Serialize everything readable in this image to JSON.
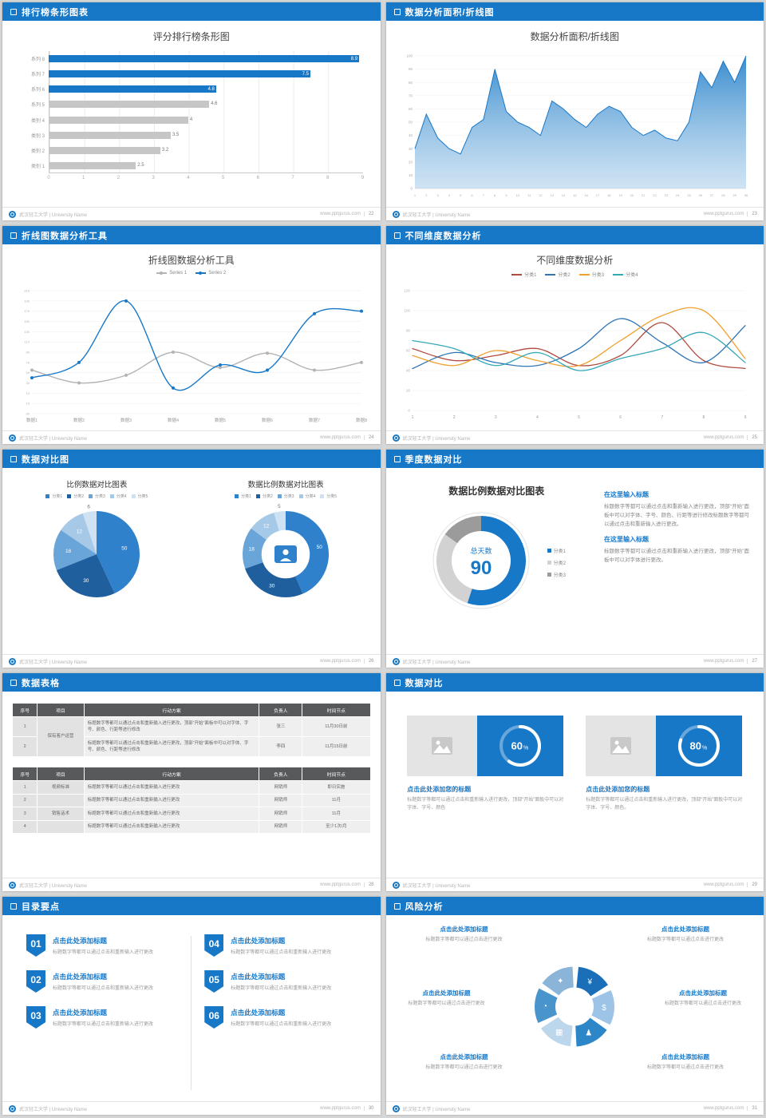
{
  "theme": {
    "accent": "#1878c8",
    "page_bg": "#d6d6d6"
  },
  "footer": {
    "org": "武汉轻工大学 | University Name",
    "url": "www.pptgurus.com"
  },
  "slides": [
    {
      "header": "排行榜条形图表",
      "page": "22",
      "title": "评分排行榜条形图",
      "chart_data": {
        "type": "bar",
        "orientation": "horizontal",
        "categories": [
          "系列 8",
          "系列 7",
          "系列 6",
          "系列 5",
          "类别 4",
          "类别 3",
          "类别 2",
          "类别 1"
        ],
        "values": [
          8.9,
          7.5,
          4.8,
          4.6,
          4,
          3.5,
          3.2,
          2.5
        ],
        "highlight_count": 3,
        "bar_color": "#1878c8",
        "muted_color": "#c6c6c6",
        "xticks": [
          0,
          1,
          2,
          3,
          4,
          5,
          6,
          7,
          8,
          9
        ],
        "xmax": 9
      }
    },
    {
      "header": "数据分析面积/折线图",
      "page": "23",
      "title": "数据分析面积/折线图",
      "chart_data": {
        "type": "area",
        "x": [
          1,
          2,
          3,
          4,
          5,
          6,
          7,
          8,
          9,
          10,
          11,
          12,
          13,
          14,
          15,
          16,
          17,
          18,
          19,
          20,
          21,
          22,
          23,
          24,
          25,
          26,
          27,
          28,
          29,
          30
        ],
        "values": [
          30,
          56,
          38,
          30,
          26,
          46,
          52,
          90,
          58,
          50,
          46,
          40,
          66,
          60,
          52,
          46,
          56,
          62,
          58,
          46,
          40,
          44,
          38,
          36,
          50,
          88,
          76,
          96,
          80,
          100
        ],
        "ylim": [
          0,
          100
        ],
        "ystep": 10,
        "line_color": "#1878c8"
      }
    },
    {
      "header": "折线图数据分析工具",
      "page": "24",
      "title": "折线图数据分析工具",
      "chart_data": {
        "type": "line",
        "categories": [
          "数据1",
          "数据2",
          "数据3",
          "数据4",
          "数据5",
          "数据6",
          "数据7",
          "数据8"
        ],
        "series": [
          {
            "name": "Series 1",
            "color": "#b3b3b3",
            "values": [
              55,
              30,
              45,
              90,
              60,
              88,
              55,
              70
            ]
          },
          {
            "name": "Series 2",
            "color": "#1878c8",
            "values": [
              40,
              70,
              190,
              20,
              65,
              55,
              165,
              170
            ]
          }
        ],
        "ylim": [
          -30,
          210
        ],
        "ystep": 20
      }
    },
    {
      "header": "不同维度数据分析",
      "page": "25",
      "title": "不同维度数据分析",
      "chart_data": {
        "type": "line",
        "categories": [
          "1",
          "2",
          "3",
          "4",
          "5",
          "6",
          "7",
          "8",
          "9"
        ],
        "series": [
          {
            "name": "分类1",
            "color": "#b04a3e",
            "values": [
              62,
              50,
              55,
              62,
              45,
              55,
              88,
              50,
              42
            ]
          },
          {
            "name": "分类2",
            "color": "#2e75b6",
            "values": [
              42,
              58,
              48,
              45,
              62,
              92,
              68,
              48,
              85
            ]
          },
          {
            "name": "分类3",
            "color": "#f0a030",
            "values": [
              55,
              45,
              60,
              50,
              45,
              70,
              95,
              100,
              52
            ]
          },
          {
            "name": "分类4",
            "color": "#35a8b8",
            "values": [
              70,
              62,
              45,
              58,
              40,
              52,
              62,
              78,
              48
            ]
          }
        ],
        "ylim": [
          0,
          120
        ],
        "ystep": 20
      }
    },
    {
      "header": "数据对比图",
      "page": "26",
      "charts": [
        {
          "title": "比例数据对比图表",
          "type": "pie",
          "labels": [
            "分类1",
            "分类2",
            "分类3",
            "分类4",
            "分类5"
          ],
          "values": [
            50,
            30,
            18,
            12,
            6
          ],
          "colors": [
            "#2f81cc",
            "#205f9e",
            "#69a5d9",
            "#a6c9e8",
            "#cfe2f3"
          ]
        },
        {
          "title": "数据比例数据对比图表",
          "type": "donut",
          "labels": [
            "分类1",
            "分类2",
            "分类3",
            "分类4",
            "分类5"
          ],
          "values": [
            50,
            30,
            18,
            12,
            5
          ],
          "colors": [
            "#2f81cc",
            "#205f9e",
            "#69a5d9",
            "#a6c9e8",
            "#cfe2f3"
          ]
        }
      ]
    },
    {
      "header": "季度数据对比",
      "page": "27",
      "title": "数据比例数据对比图表",
      "chart_data": {
        "type": "donut",
        "labels": [
          "分类1",
          "分类2",
          "分类3"
        ],
        "values": [
          55,
          30,
          15
        ],
        "colors": [
          "#1878c8",
          "#d2d2d2",
          "#9b9b9b"
        ],
        "center_label": "总天数",
        "center_value": "90"
      },
      "blocks": [
        {
          "heading": "在这里输入标题",
          "body": "标题数字等都可以通过点击和重新输入进行更改，顶部“开始”面板中可以对字体、字号、颜色、行距等进行修改标题数字等都可以通过点击和重新输入进行更改。"
        },
        {
          "heading": "在这里输入标题",
          "body": "标题数字等都可以通过点击和重新输入进行更改，顶部“开始”面板中可以对字体进行更改。"
        }
      ]
    },
    {
      "header": "数据表格",
      "page": "28",
      "tables": [
        {
          "headers": [
            "序号",
            "项目",
            "行动方案",
            "负责人",
            "时间节点"
          ],
          "merged_project": "保有客户运营",
          "rows": [
            {
              "no": "1",
              "action": "标题数字等都可以通过点击和重新输入进行更改，顶部“开始”面板中可以对字体、字号、颜色、行距等进行修改",
              "owner": "张三",
              "time": "11月30日前"
            },
            {
              "no": "2",
              "action": "标题数字等都可以通过点击和重新输入进行更改，顶部“开始”面板中可以对字体、字号、颜色、行距等进行修改",
              "owner": "李四",
              "time": "11月15日前"
            }
          ]
        },
        {
          "headers": [
            "序号",
            "项目",
            "行动方案",
            "负责人",
            "时间节点"
          ],
          "rows": [
            {
              "no": "1",
              "project": "视频标准",
              "action": "标题数字等都可以通过点击和重新输入进行更改",
              "owner": "网销师",
              "time": "即日实施"
            },
            {
              "no": "2",
              "project": "",
              "action": "标题数字等都可以通过点击和重新输入进行更改",
              "owner": "网销师",
              "time": "11月"
            },
            {
              "no": "3",
              "project": "销售话术",
              "action": "标题数字等都可以通过点击和重新输入进行更改",
              "owner": "网销师",
              "time": "11月"
            },
            {
              "no": "4",
              "project": "",
              "action": "标题数字等都可以通过点击和重新输入进行更改",
              "owner": "网销师",
              "time": "至少1次/月"
            }
          ]
        }
      ]
    },
    {
      "header": "数据对比",
      "page": "29",
      "cards": [
        {
          "pct": 60,
          "title": "点击此处添加您的标题",
          "desc": "标题数字等都可以通过点击和重新输入进行更改，顶部“开始”面板中可以对字体、字号、颜色"
        },
        {
          "pct": 80,
          "title": "点击此处添加您的标题",
          "desc": "标题数字等都可以通过点击和重新输入进行更改，顶部“开始”面板中可以对字体、字号、颜色。"
        }
      ]
    },
    {
      "header": "目录要点",
      "page": "30",
      "items": [
        {
          "num": "01",
          "title": "点击此处添加标题",
          "desc": "标题数字等都可以通过点击和重新输入进行更改"
        },
        {
          "num": "02",
          "title": "点击此处添加标题",
          "desc": "标题数字等都可以通过点击和重新输入进行更改"
        },
        {
          "num": "03",
          "title": "点击此处添加标题",
          "desc": "标题数字等都可以通过点击和重新输入进行更改"
        },
        {
          "num": "04",
          "title": "点击此处添加标题",
          "desc": "标题数字等都可以通过点击和重新输入进行更改"
        },
        {
          "num": "05",
          "title": "点击此处添加标题",
          "desc": "标题数字等都可以通过点击和重新输入进行更改"
        },
        {
          "num": "06",
          "title": "点击此处添加标题",
          "desc": "标题数字等都可以通过点击和重新输入进行更改"
        }
      ]
    },
    {
      "header": "风险分析",
      "page": "31",
      "wheel_icons": [
        "¥",
        "$",
        "♟",
        "▦",
        "◔",
        "✦"
      ],
      "wheel_colors": [
        "#1b6fb8",
        "#9dc3e6",
        "#2d86c8",
        "#bcd6ec",
        "#4a94cc",
        "#8ab4d8"
      ],
      "points": [
        {
          "title": "点击此处添加标题",
          "desc": "标题数字等都可以通过点击进行更改"
        },
        {
          "title": "点击此处添加标题",
          "desc": "标题数字等都可以通过点击进行更改"
        },
        {
          "title": "点击此处添加标题",
          "desc": "标题数字等都可以通过点击进行更改"
        },
        {
          "title": "点击此处添加标题",
          "desc": "标题数字等都可以通过点击进行更改"
        },
        {
          "title": "点击此处添加标题",
          "desc": "标题数字等都可以通过点击进行更改"
        },
        {
          "title": "点击此处添加标题",
          "desc": "标题数字等都可以通过点击进行更改"
        }
      ]
    }
  ]
}
